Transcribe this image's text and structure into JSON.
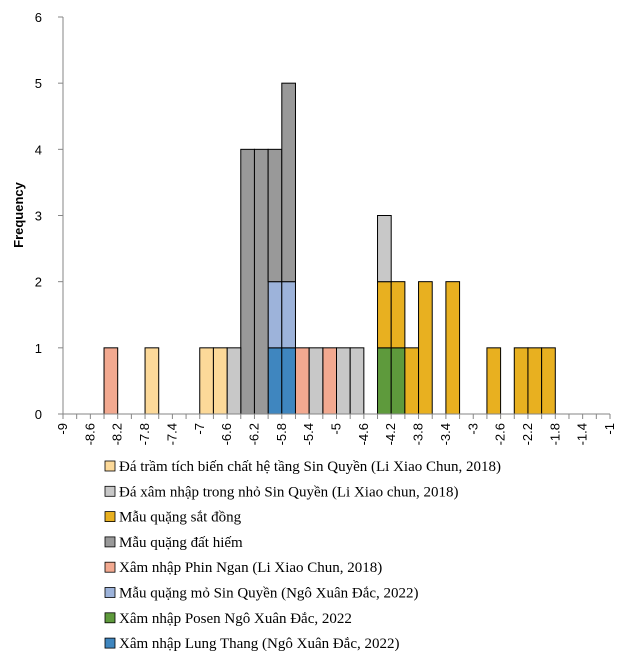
{
  "chart_data": {
    "type": "bar",
    "stacked": true,
    "ylabel": "Frequency",
    "xlabel": "",
    "ylim": [
      0,
      6
    ],
    "y_ticks": [
      0,
      1,
      2,
      3,
      4,
      5,
      6
    ],
    "xlim": [
      -9,
      -1
    ],
    "bin_width": 0.2,
    "x_tick_labels": [
      "-9",
      "-8.6",
      "-8.2",
      "-7.8",
      "-7.4",
      "-7",
      "-6.6",
      "-6.2",
      "-5.8",
      "-5.4",
      "-5",
      "-4.6",
      "-4.2",
      "-3.8",
      "-3.4",
      "-3",
      "-2.6",
      "-2.2",
      "-1.8",
      "-1.4",
      "-1"
    ],
    "grid": false,
    "legend_position": "bottom",
    "series": [
      {
        "name": "Xâm nhập Lung Thang (Ngô Xuân Đắc, 2022)",
        "color": "#3f86bf",
        "values": [
          {
            "x": -5.9,
            "y": 1
          },
          {
            "x": -5.7,
            "y": 1
          }
        ]
      },
      {
        "name": "Xâm nhập Posen Ngô Xuân Đắc, 2022",
        "color": "#5e9a3c",
        "values": [
          {
            "x": -4.3,
            "y": 1
          },
          {
            "x": -4.1,
            "y": 1
          }
        ]
      },
      {
        "name": "Mẫu quặng mỏ Sin Quyền (Ngô Xuân Đắc, 2022)",
        "color": "#9db3da",
        "values": [
          {
            "x": -5.9,
            "y": 1
          },
          {
            "x": -5.7,
            "y": 1
          }
        ]
      },
      {
        "name": "Xâm nhập Phin Ngan (Li Xiao Chun, 2018)",
        "color": "#f2a990",
        "values": [
          {
            "x": -8.3,
            "y": 1
          },
          {
            "x": -5.5,
            "y": 1
          },
          {
            "x": -5.1,
            "y": 1
          }
        ]
      },
      {
        "name": "Mẫu quặng đất hiếm",
        "color": "#999999",
        "values": [
          {
            "x": -6.3,
            "y": 4
          },
          {
            "x": -6.1,
            "y": 4
          },
          {
            "x": -5.9,
            "y": 2
          },
          {
            "x": -5.7,
            "y": 3
          }
        ]
      },
      {
        "name": "Mẫu quặng sắt đồng",
        "color": "#e8b020",
        "values": [
          {
            "x": -4.3,
            "y": 1
          },
          {
            "x": -4.1,
            "y": 1
          },
          {
            "x": -3.9,
            "y": 1
          },
          {
            "x": -3.7,
            "y": 2
          },
          {
            "x": -3.3,
            "y": 2
          },
          {
            "x": -2.7,
            "y": 1
          },
          {
            "x": -2.3,
            "y": 1
          },
          {
            "x": -2.1,
            "y": 1
          },
          {
            "x": -1.9,
            "y": 1
          }
        ]
      },
      {
        "name": "Đá xâm nhập trong nhỏ Sin Quyền (Li Xiao chun, 2018)",
        "color": "#c8c8c8",
        "values": [
          {
            "x": -6.5,
            "y": 1
          },
          {
            "x": -5.3,
            "y": 1
          },
          {
            "x": -4.9,
            "y": 1
          },
          {
            "x": -4.7,
            "y": 1
          },
          {
            "x": -4.3,
            "y": 1
          }
        ]
      },
      {
        "name": "Đá trầm tích biến chất hệ tầng Sin Quyền (Li Xiao Chun, 2018)",
        "color": "#fcd999",
        "values": [
          {
            "x": -7.7,
            "y": 1
          },
          {
            "x": -6.9,
            "y": 1
          },
          {
            "x": -6.7,
            "y": 1
          }
        ]
      }
    ],
    "legend_order": [
      "Đá trầm tích biến chất hệ tầng Sin Quyền (Li Xiao Chun, 2018)",
      "Đá xâm nhập trong nhỏ Sin Quyền (Li Xiao chun, 2018)",
      "Mẫu quặng sắt đồng",
      "Mẫu quặng đất hiếm",
      "Xâm nhập Phin Ngan (Li Xiao Chun, 2018)",
      "Mẫu quặng mỏ Sin Quyền (Ngô Xuân Đắc, 2022)",
      "Xâm nhập Posen Ngô Xuân Đắc, 2022",
      "Xâm nhập Lung Thang (Ngô Xuân Đắc, 2022)"
    ]
  }
}
